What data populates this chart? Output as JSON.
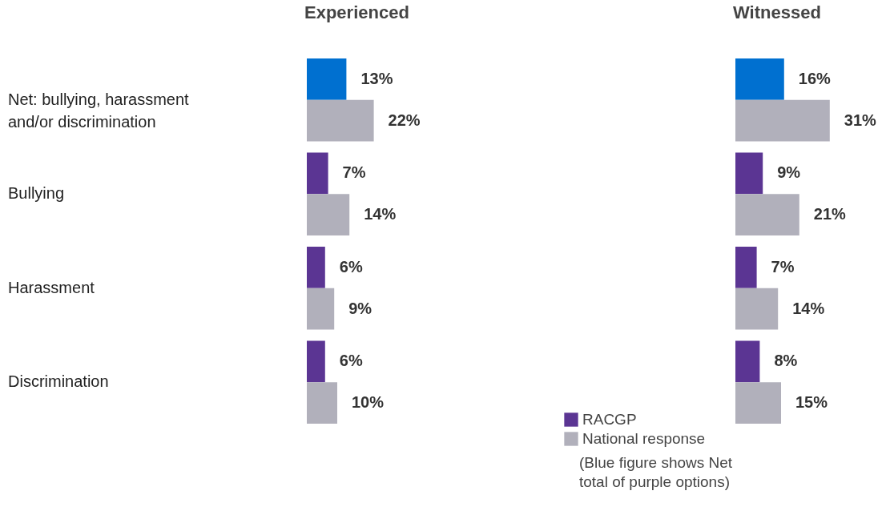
{
  "chart_data": [
    {
      "type": "bar",
      "orientation": "horizontal",
      "title": "Experienced",
      "tick_labels": "y",
      "legend": "bottom",
      "categories": [
        "Net: bullying, harassment and/or discrimination",
        "Bullying",
        "Harassment",
        "Discrimination"
      ],
      "series": [
        {
          "name": "RACGP",
          "color": "#5b3593",
          "colors": [
            "#0070d0",
            "#5b3593",
            "#5b3593",
            "#5b3593"
          ],
          "values": [
            13,
            7,
            6,
            6
          ],
          "value_labels": [
            "13%",
            "7%",
            "6%",
            "6%"
          ]
        },
        {
          "name": "National response",
          "color": "#b1b0bb",
          "values": [
            22,
            14,
            9,
            10
          ],
          "value_labels": [
            "22%",
            "14%",
            "9%",
            "10%"
          ]
        }
      ],
      "annotations": [
        "(Blue figure shows Net total of purple options)"
      ]
    },
    {
      "type": "bar",
      "orientation": "horizontal",
      "title": "Witnessed",
      "tick_labels": false,
      "categories": [
        null,
        null,
        null,
        null
      ],
      "series": [
        {
          "colors": [
            "#0070d0",
            "#5b3593",
            "#5b3593",
            "#5b3593"
          ],
          "values": [
            16,
            9,
            7,
            8
          ],
          "value_labels": [
            "16%",
            "9%",
            "7%",
            "8%"
          ]
        },
        {
          "colors": [
            "#b1b0bb",
            "#b1b0bb",
            "#b1b0bb",
            "#b1b0bb"
          ],
          "values": [
            31,
            21,
            14,
            15
          ],
          "value_labels": [
            "31%",
            "21%",
            "14%",
            "15%"
          ]
        }
      ]
    }
  ]
}
